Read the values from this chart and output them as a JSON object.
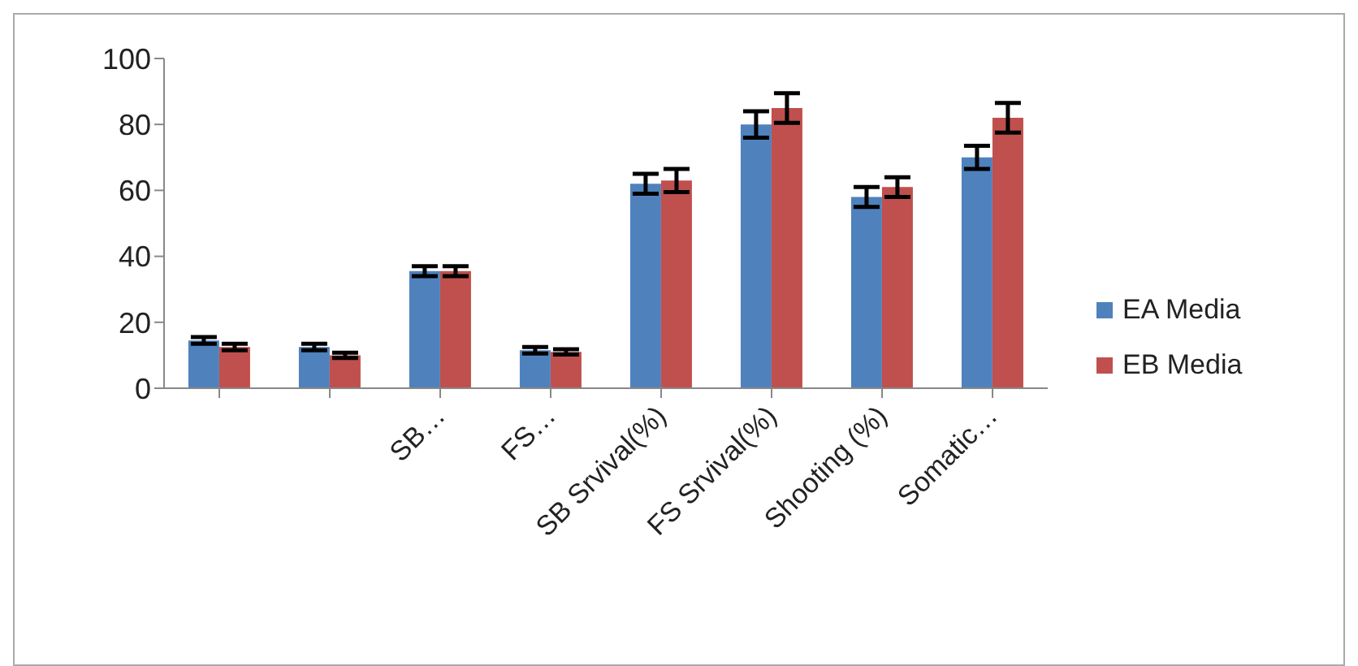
{
  "chart_data": {
    "type": "bar",
    "categories": [
      null,
      null,
      "SB…",
      "FS…",
      "SB Srvival(%)",
      "FS Srvival(%)",
      "Shooting (%)",
      "Somatic…"
    ],
    "series": [
      {
        "name": "EA Media",
        "color": "#4f81bd",
        "values": [
          14.5,
          12.5,
          35.5,
          11.5,
          62,
          80,
          58,
          70
        ],
        "errors": [
          1,
          1,
          1.5,
          1,
          3,
          4,
          3,
          3.5
        ]
      },
      {
        "name": "EB Media",
        "color": "#c0504d",
        "values": [
          12.5,
          10,
          35.5,
          11,
          63,
          85,
          61,
          82
        ],
        "errors": [
          1,
          0.8,
          1.5,
          0.8,
          3.5,
          4.5,
          3,
          4.5
        ]
      }
    ],
    "ylim": [
      0,
      100
    ],
    "yticks": [
      0,
      20,
      40,
      60,
      80,
      100
    ],
    "grid": false,
    "legend": "right"
  }
}
